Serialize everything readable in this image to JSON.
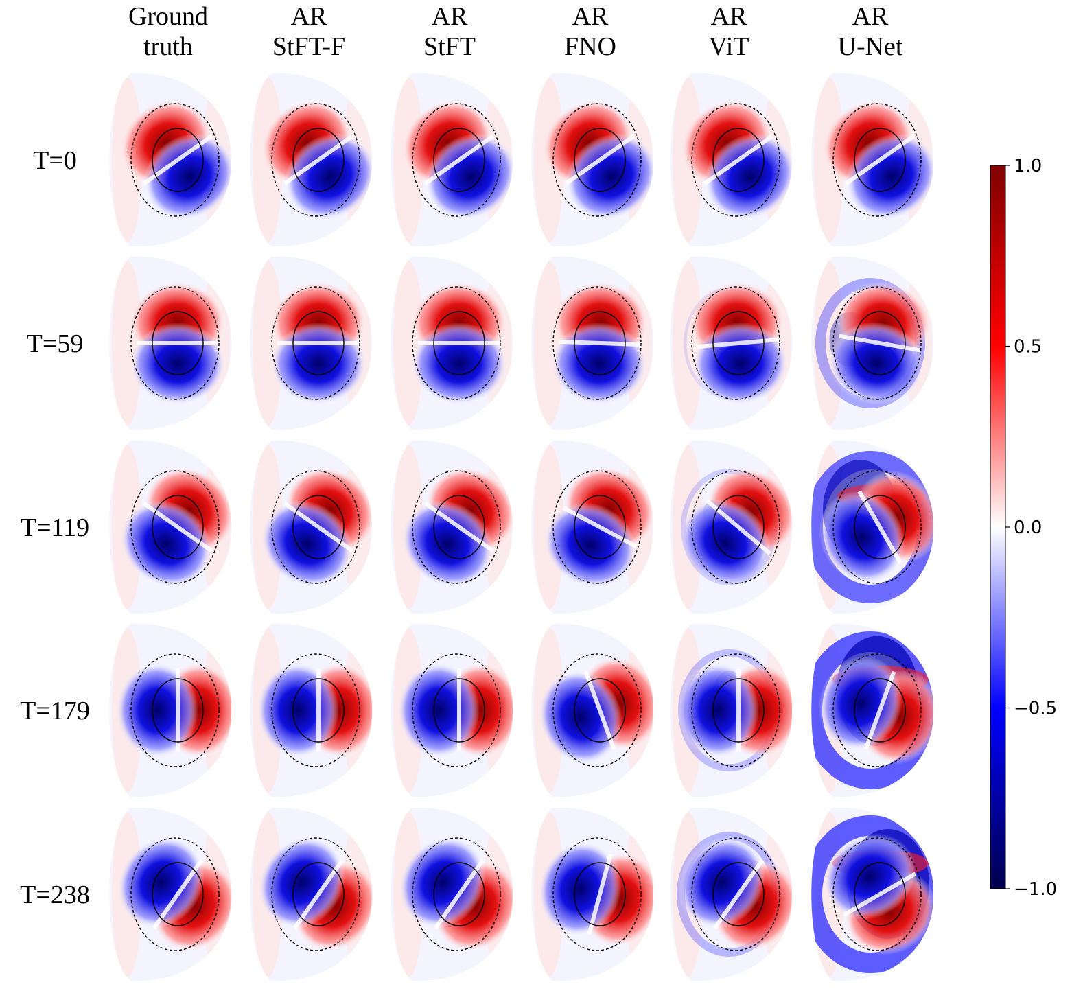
{
  "chart_data": {
    "type": "heatmap",
    "title": "",
    "columns": [
      {
        "line1": "Ground",
        "line2": "truth"
      },
      {
        "line1": "AR",
        "line2": "StFT-F"
      },
      {
        "line1": "AR",
        "line2": "StFT"
      },
      {
        "line1": "AR",
        "line2": "FNO"
      },
      {
        "line1": "AR",
        "line2": "ViT"
      },
      {
        "line1": "AR",
        "line2": "U-Net"
      }
    ],
    "rows": [
      "T=0",
      "T=59",
      "T=119",
      "T=179",
      "T=238"
    ],
    "row_times": [
      0,
      59,
      119,
      179,
      238
    ],
    "dipole_angle_deg": [
      [
        -35,
        0,
        35,
        90,
        125
      ],
      [
        -35,
        0,
        35,
        90,
        125
      ],
      [
        -35,
        0,
        35,
        90,
        125
      ],
      [
        -35,
        2,
        28,
        70,
        105
      ],
      [
        -35,
        -5,
        40,
        90,
        125
      ],
      [
        -35,
        10,
        60,
        110,
        150
      ]
    ],
    "dipole_noise": [
      [
        0,
        0,
        0,
        0,
        0
      ],
      [
        0,
        0,
        0,
        0,
        0
      ],
      [
        0,
        0,
        0,
        0,
        0
      ],
      [
        0,
        0,
        0,
        0,
        0
      ],
      [
        0,
        0.15,
        0.25,
        0.35,
        0.4
      ],
      [
        0,
        0.5,
        0.9,
        1.0,
        1.0
      ]
    ],
    "colorbar": {
      "vmin": -1.0,
      "vmax": 1.0,
      "ticks": [
        1.0,
        0.5,
        0.0,
        -0.5,
        -1.0
      ],
      "tick_labels": [
        "1.0",
        "0.5",
        "0.0",
        "−0.5",
        "−1.0"
      ],
      "colormap": "seismic",
      "colors": [
        "#00004c",
        "#0000ff",
        "#ffffff",
        "#ff0000",
        "#800000"
      ]
    }
  }
}
